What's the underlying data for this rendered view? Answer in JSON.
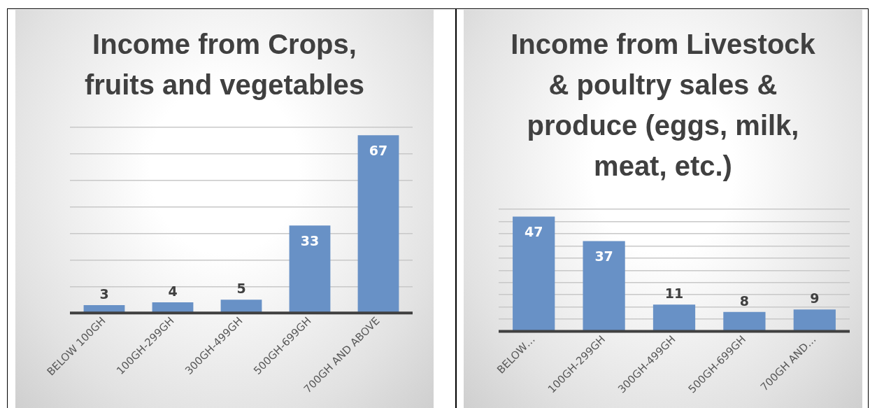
{
  "chart_data": [
    {
      "type": "bar",
      "title": "Income from Crops, fruits and vegetables",
      "categories": [
        "BELOW 100GH",
        "100GH-299GH",
        "300GH-499GH",
        "500GH-699GH",
        "700GH AND ABOVE"
      ],
      "values": [
        3,
        4,
        5,
        33,
        67
      ],
      "color": "#6891c6",
      "grid": "y",
      "tick_labels": "x",
      "data_labels": true
    },
    {
      "type": "bar",
      "title": "Income from Livestock & poultry sales & produce (eggs, milk, meat, etc.)",
      "categories": [
        "BELOW…",
        "100GH-299GH",
        "300GH-499GH",
        "500GH-699GH",
        "700GH AND…"
      ],
      "values": [
        47,
        37,
        11,
        8,
        9
      ],
      "color": "#6891c6",
      "grid": "y",
      "tick_labels": "x",
      "data_labels": true
    }
  ]
}
